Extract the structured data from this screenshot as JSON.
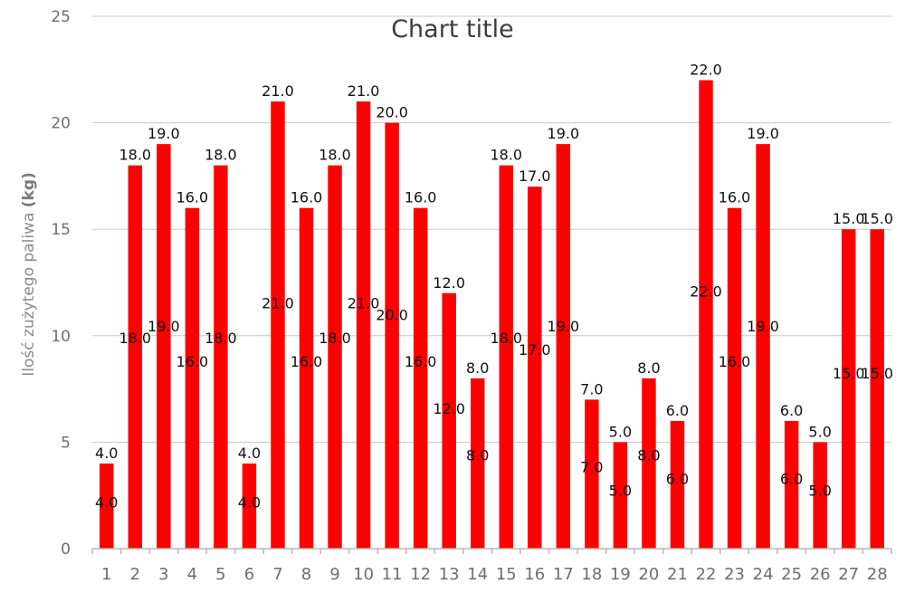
{
  "chart_data": {
    "type": "bar",
    "title": "Chart title",
    "ylabel_prefix": "Ilość zużytego paliwa ",
    "ylabel_unit": "(kg)",
    "xlabel": "",
    "ylim": [
      0,
      25
    ],
    "yticks": [
      "0",
      "5",
      "10",
      "15",
      "20",
      "25"
    ],
    "grid": true,
    "legend": "none",
    "colors": {
      "bar": "#ff0000"
    },
    "categories": [
      "1",
      "2",
      "3",
      "4",
      "5",
      "6",
      "7",
      "8",
      "9",
      "10",
      "11",
      "12",
      "13",
      "14",
      "15",
      "16",
      "17",
      "18",
      "19",
      "20",
      "21",
      "22",
      "23",
      "24",
      "25",
      "26",
      "27",
      "28"
    ],
    "values": [
      4,
      18,
      19,
      16,
      18,
      4,
      21,
      16,
      18,
      21,
      20,
      16,
      12,
      8,
      18,
      17,
      19,
      7,
      5,
      8,
      6,
      22,
      16,
      19,
      6,
      5,
      15,
      15
    ],
    "data_labels": [
      "4.0",
      "18.0",
      "19.0",
      "16.0",
      "18.0",
      "4.0",
      "21.0",
      "16.0",
      "18.0",
      "21.0",
      "20.0",
      "16.0",
      "12.0",
      "8.0",
      "18.0",
      "17.0",
      "19.0",
      "7.0",
      "5.0",
      "8.0",
      "6.0",
      "22.0",
      "16.0",
      "19.0",
      "6.0",
      "5.0",
      "15.0",
      "15.0"
    ]
  }
}
